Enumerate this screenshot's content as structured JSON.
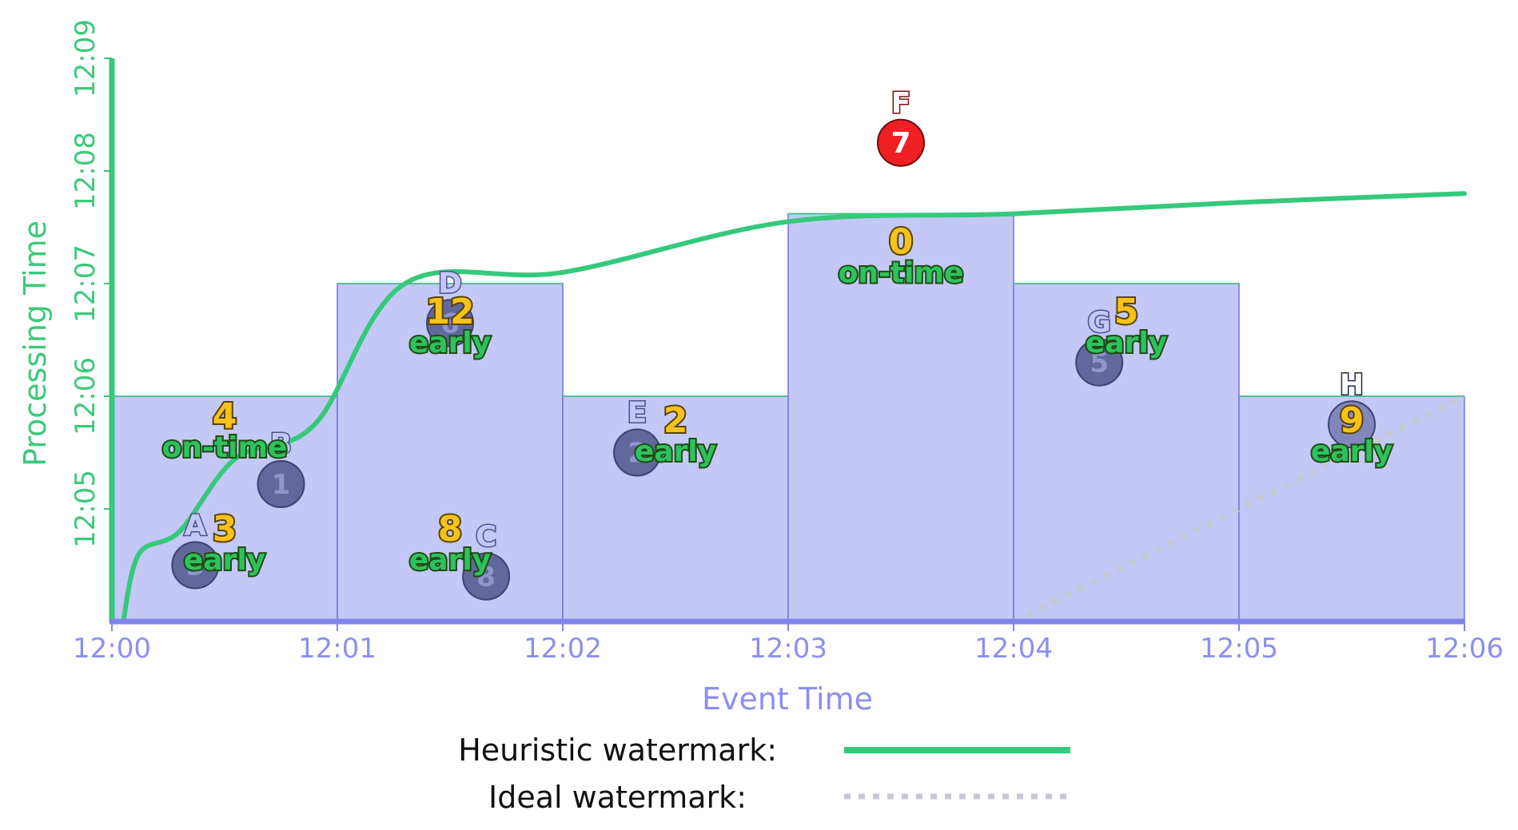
{
  "chart_data": {
    "type": "watermark-windowing-diagram",
    "x_axis": {
      "title": "Event Time",
      "ticks": [
        "12:00",
        "12:01",
        "12:02",
        "12:03",
        "12:04",
        "12:05",
        "12:06"
      ],
      "range_minutes": [
        0,
        6
      ]
    },
    "y_axis": {
      "title": "Processing Time",
      "ticks": [
        "12:05",
        "12:06",
        "12:07",
        "12:08",
        "12:09"
      ],
      "range_minutes": [
        4,
        9
      ]
    },
    "panes": [
      {
        "window": [
          0,
          1
        ],
        "fire_at": 5,
        "count": "3",
        "timing": "early",
        "emphasis": "strong"
      },
      {
        "window": [
          0,
          1
        ],
        "fire_at": 6,
        "count": "4",
        "timing": "on-time",
        "emphasis": "light"
      },
      {
        "window": [
          1,
          2
        ],
        "fire_at": 5,
        "count": "8",
        "timing": "early",
        "emphasis": "strong"
      },
      {
        "window": [
          1,
          2
        ],
        "fire_at": 7,
        "count": "12",
        "timing": "early",
        "emphasis": "light"
      },
      {
        "window": [
          2,
          3
        ],
        "fire_at": 6,
        "count": "2",
        "timing": "early",
        "emphasis": "light"
      },
      {
        "window": [
          3,
          4
        ],
        "fire_at": 7.62,
        "count": "0",
        "timing": "on-time",
        "emphasis": "light"
      },
      {
        "window": [
          4,
          5
        ],
        "fire_at": 7,
        "count": "5",
        "timing": "early",
        "emphasis": "light"
      },
      {
        "window": [
          5,
          6
        ],
        "fire_at": 6,
        "count": "9",
        "timing": "early",
        "emphasis": "light"
      }
    ],
    "data_points": [
      {
        "label": "A",
        "value": "3",
        "event_time": 0.37,
        "processing_time": 4.5,
        "style": "normal"
      },
      {
        "label": "B",
        "value": "1",
        "event_time": 0.75,
        "processing_time": 5.22,
        "style": "normal"
      },
      {
        "label": "C",
        "value": "8",
        "event_time": 1.66,
        "processing_time": 4.4,
        "style": "normal"
      },
      {
        "label": "D",
        "value": "6",
        "event_time": 1.5,
        "processing_time": 6.65,
        "style": "normal"
      },
      {
        "label": "E",
        "value": "2",
        "event_time": 2.33,
        "processing_time": 5.5,
        "style": "normal"
      },
      {
        "label": "F",
        "value": "7",
        "event_time": 3.5,
        "processing_time": 8.25,
        "style": "late"
      },
      {
        "label": "G",
        "value": "5",
        "event_time": 4.38,
        "processing_time": 6.3,
        "style": "normal"
      },
      {
        "label": "H",
        "value": "9",
        "event_time": 5.5,
        "processing_time": 5.75,
        "style": "highlight"
      }
    ],
    "heuristic_watermark": {
      "points": [
        [
          0.05,
          4
        ],
        [
          0.12,
          4.6
        ],
        [
          0.3,
          4.8
        ],
        [
          0.55,
          5.45
        ],
        [
          0.9,
          5.75
        ],
        [
          1.3,
          7
        ],
        [
          2.0,
          7.1
        ],
        [
          3.0,
          7.55
        ],
        [
          4.0,
          7.62
        ],
        [
          5.0,
          7.72
        ],
        [
          6.0,
          7.8
        ]
      ]
    },
    "ideal_watermark": {
      "points": [
        [
          4.0,
          4
        ],
        [
          6.0,
          6
        ]
      ]
    }
  },
  "legend": {
    "heuristic_label": "Heuristic watermark:",
    "ideal_label": "Ideal watermark:"
  },
  "colors": {
    "heuristic": "#35c97b",
    "ideal": "#c6c8d8",
    "pane_light": "#c3c8f6",
    "pane_strong": "#a2abf1",
    "pane_stroke": "#6f76e0",
    "axis_x": "#7f86ea",
    "axis_y": "#35c97b",
    "dot": "#5c6396",
    "dot_late": "#ef1f24",
    "dot_highlight": "#7d83b8"
  }
}
